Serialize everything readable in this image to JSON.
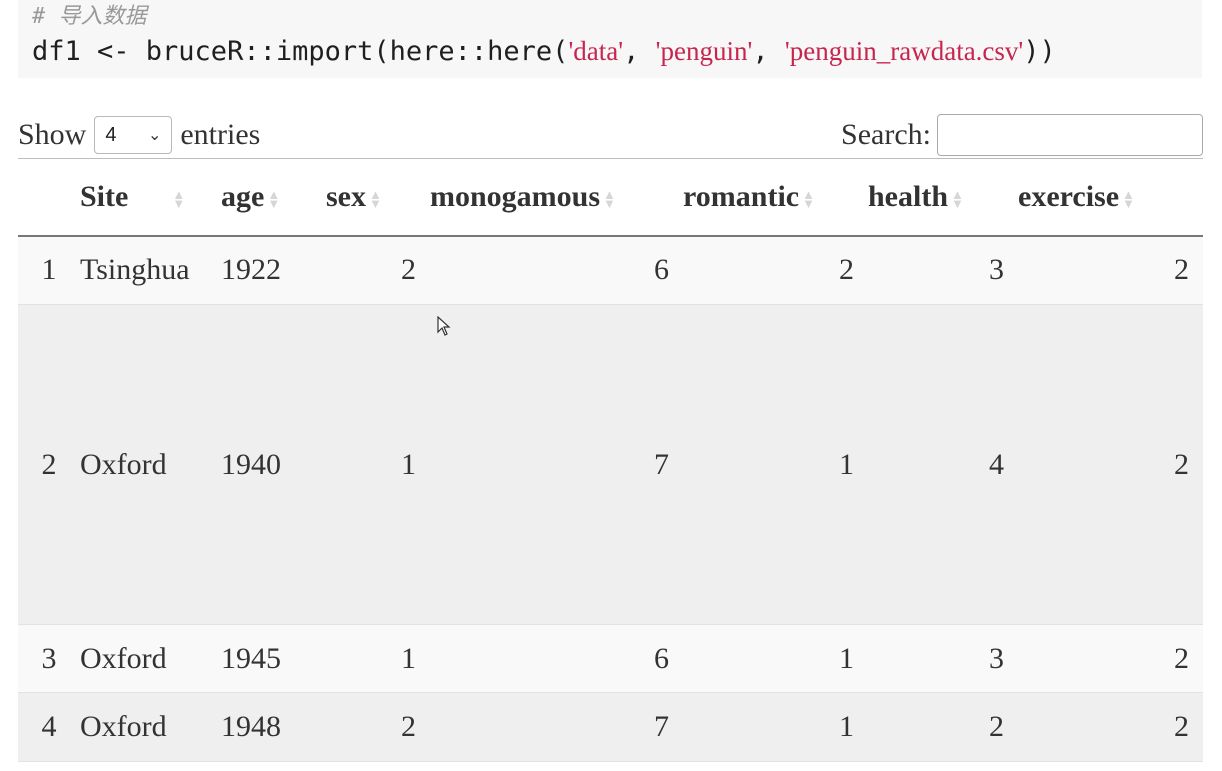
{
  "code": {
    "comment": "# 导入数据",
    "prefix": "df1 <- bruceR::import(here::here(",
    "arg1": "'data'",
    "sep1": ", ",
    "arg2": "'penguin'",
    "sep2": ", ",
    "arg3": "'penguin_rawdata.csv'",
    "suffix": "))"
  },
  "controls": {
    "show_label": "Show",
    "entries_value": "4",
    "entries_label": "entries",
    "search_label": "Search:",
    "search_value": ""
  },
  "table": {
    "columns": [
      "",
      "Site",
      "age",
      "sex",
      "monogamous",
      "romantic",
      "health",
      "exercise"
    ],
    "rows": [
      [
        "1",
        "Tsinghua",
        "1922",
        "2",
        "6",
        "2",
        "3",
        "2"
      ],
      [
        "2",
        "Oxford",
        "1940",
        "1",
        "7",
        "1",
        "4",
        "2"
      ],
      [
        "3",
        "Oxford",
        "1945",
        "1",
        "6",
        "1",
        "3",
        "2"
      ],
      [
        "4",
        "Oxford",
        "1948",
        "2",
        "7",
        "1",
        "2",
        "2"
      ]
    ]
  },
  "icons": {
    "sort": "sort-both-icon",
    "select_caret": "chevron-down-icon",
    "cursor": "mouse-pointer-icon"
  }
}
